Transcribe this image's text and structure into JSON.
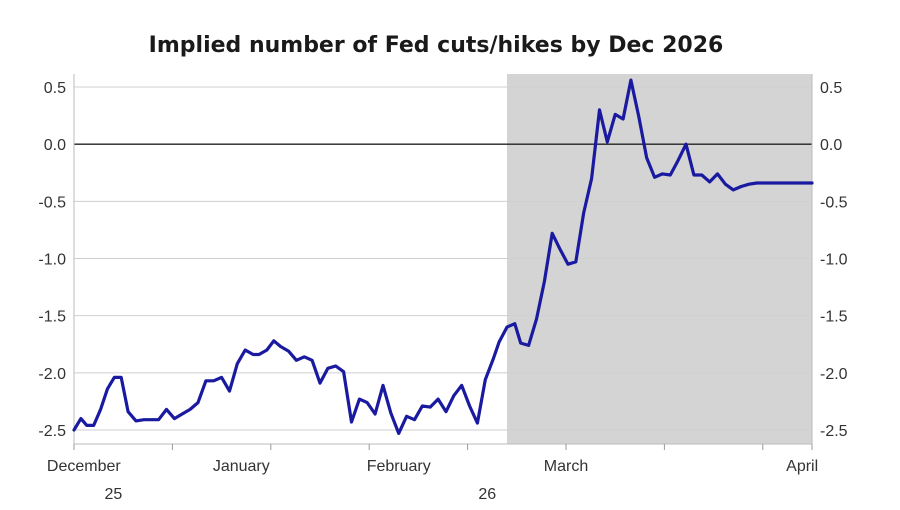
{
  "chart_data": {
    "type": "line",
    "title": "Implied number of Fed cuts/hikes by Dec 2026",
    "xlabel": "",
    "ylabel": "",
    "ylim": [
      -2.5,
      0.5
    ],
    "yticks": [
      0.5,
      0.0,
      -0.5,
      -1.0,
      -1.5,
      -2.0,
      -2.5
    ],
    "ytick_labels": [
      "0.5",
      "0.0",
      "-0.5",
      "-1.0",
      "-1.5",
      "-2.0",
      "-2.5"
    ],
    "zero_line": 0.0,
    "shaded_region": {
      "from": 44,
      "to": 75
    },
    "x_tick_positions": [
      0,
      10,
      20,
      30,
      40,
      50,
      60,
      70,
      75
    ],
    "x_month_labels": [
      {
        "x": 1,
        "label": "December"
      },
      {
        "x": 17,
        "label": "January"
      },
      {
        "x": 33,
        "label": "February"
      },
      {
        "x": 50,
        "label": "March"
      },
      {
        "x": 74,
        "label": "April"
      }
    ],
    "x_year_labels": [
      {
        "x": 4,
        "label": "25"
      },
      {
        "x": 42,
        "label": "26"
      }
    ],
    "series": [
      {
        "name": "Implied number of Fed cuts/hikes",
        "color": "#1a1aa0",
        "x": [
          0,
          0.7,
          1.3,
          2,
          2.7,
          3.4,
          4.1,
          4.8,
          5.5,
          6.3,
          7.1,
          7.8,
          8.6,
          9.4,
          10.2,
          11,
          11.8,
          12.6,
          13.4,
          14.2,
          15,
          15.8,
          16.6,
          17.4,
          18.2,
          18.8,
          19.6,
          20.3,
          21,
          21.8,
          22.6,
          23.4,
          24.2,
          25,
          25.8,
          26.6,
          27.4,
          28.2,
          29,
          29.8,
          30.6,
          31.4,
          32.2,
          33,
          33.8,
          34.6,
          35.4,
          36.2,
          37,
          37.8,
          38.6,
          39.4,
          40.2,
          41,
          41.8,
          42.6,
          43.2,
          44,
          44.8,
          45.4,
          46.2,
          47,
          47.8,
          48.6,
          49.4,
          50.2,
          51,
          51.8,
          52.6,
          53.4,
          54.2,
          55,
          55.8,
          56.6,
          57.4,
          58.2,
          59,
          59.8,
          60.6,
          61.4,
          62.2,
          63,
          63.8,
          64.6,
          65.4,
          66.2,
          67,
          67.8,
          68.6,
          69.4,
          70.2,
          71,
          71.8,
          72.6,
          73.4,
          74.2,
          75
        ],
        "values": [
          -2.5,
          -2.4,
          -2.46,
          -2.46,
          -2.32,
          -2.14,
          -2.04,
          -2.04,
          -2.34,
          -2.42,
          -2.41,
          -2.41,
          -2.41,
          -2.32,
          -2.4,
          -2.36,
          -2.32,
          -2.26,
          -2.07,
          -2.07,
          -2.04,
          -2.16,
          -1.92,
          -1.8,
          -1.84,
          -1.84,
          -1.8,
          -1.72,
          -1.77,
          -1.81,
          -1.89,
          -1.86,
          -1.89,
          -2.09,
          -1.96,
          -1.94,
          -1.99,
          -2.43,
          -2.23,
          -2.26,
          -2.36,
          -2.11,
          -2.35,
          -2.53,
          -2.38,
          -2.41,
          -2.29,
          -2.3,
          -2.23,
          -2.34,
          -2.2,
          -2.11,
          -2.29,
          -2.44,
          -2.06,
          -1.88,
          -1.73,
          -1.6,
          -1.57,
          -1.74,
          -1.76,
          -1.53,
          -1.2,
          -0.78,
          -0.92,
          -1.05,
          -1.03,
          -0.6,
          -0.3,
          0.3,
          0.02,
          0.26,
          0.22,
          0.56,
          0.24,
          -0.12,
          -0.29,
          -0.26,
          -0.27,
          -0.14,
          0.0,
          -0.27,
          -0.27,
          -0.33,
          -0.26,
          -0.35,
          -0.4,
          -0.37,
          -0.35,
          -0.34,
          -0.34,
          -0.34,
          -0.34,
          -0.34,
          -0.34,
          -0.34,
          -0.34
        ]
      }
    ]
  }
}
